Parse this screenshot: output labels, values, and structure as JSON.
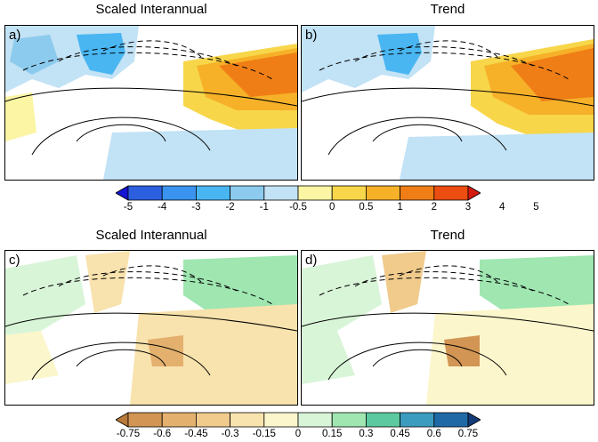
{
  "panels": [
    {
      "label": "a)",
      "title": "Scaled Interannual",
      "field": "temperature",
      "row": 0,
      "col": 0
    },
    {
      "label": "b)",
      "title": "Trend",
      "field": "temperature",
      "row": 0,
      "col": 1
    },
    {
      "label": "c)",
      "title": "Scaled Interannual",
      "field": "precip",
      "row": 1,
      "col": 0
    },
    {
      "label": "d)",
      "title": "Trend",
      "field": "precip",
      "row": 1,
      "col": 1
    }
  ],
  "colorbars": [
    {
      "ticks": [
        "-5",
        "-4",
        "-3",
        "-2",
        "-1",
        "-0.5",
        "0",
        "0.5",
        "1",
        "2",
        "3",
        "4",
        "5"
      ],
      "colors": [
        "#1414d2",
        "#2c5fe0",
        "#3a93ee",
        "#49b6f2",
        "#8ccbee",
        "#c2e2f5",
        "#fbf5a4",
        "#f7d64a",
        "#f6b128",
        "#f07e16",
        "#ec4d10",
        "#d41a10"
      ]
    },
    {
      "ticks": [
        "-0.75",
        "-0.6",
        "-0.45",
        "-0.3",
        "-0.15",
        "0",
        "0.15",
        "0.3",
        "0.45",
        "0.6",
        "0.75"
      ],
      "colors": [
        "#b97a3a",
        "#d29554",
        "#e3b06e",
        "#f0cb8c",
        "#f8e2ad",
        "#fcf6cc",
        "#d9f5d8",
        "#9fe6b1",
        "#5cc9a0",
        "#3b9cbf",
        "#1f6aa6",
        "#153b78"
      ]
    }
  ]
}
